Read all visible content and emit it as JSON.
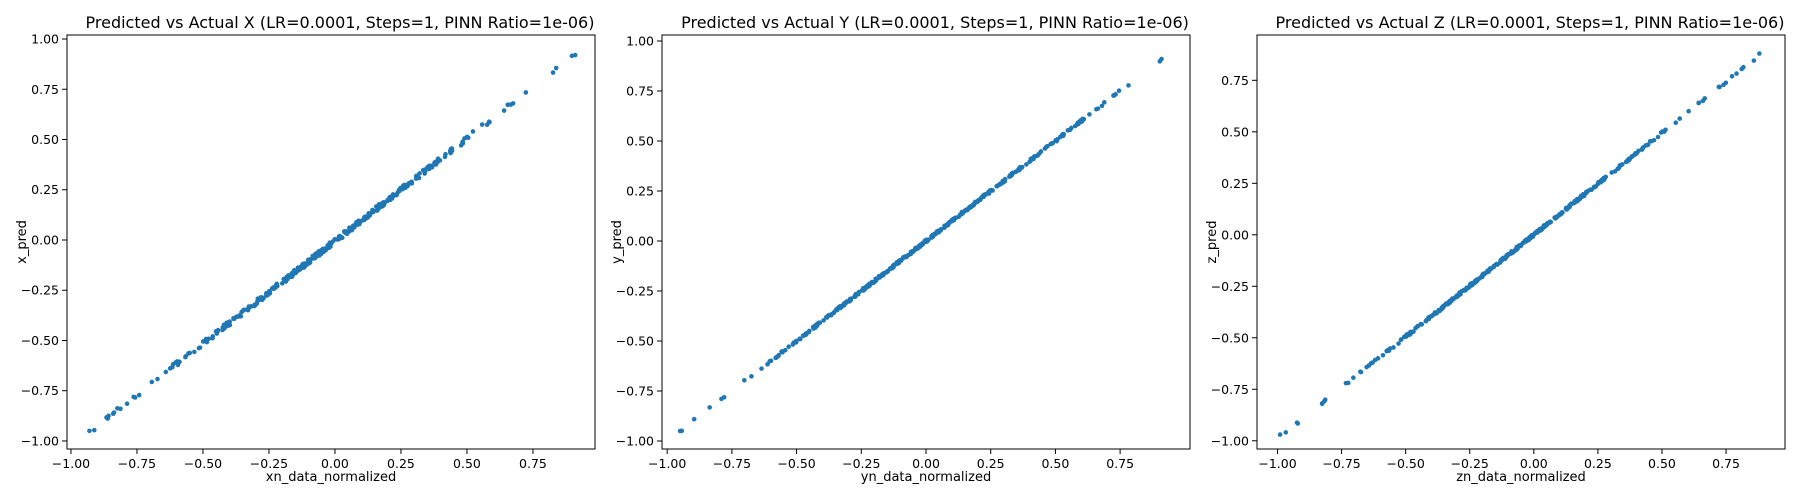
{
  "chart_data": [
    {
      "type": "scatter",
      "title": "Predicted vs Actual X (LR=0.0001, Steps=1, PINN Ratio=1e-06)",
      "xlabel": "xn_data_normalized",
      "ylabel": "x_pred",
      "xlim": [
        -1.015,
        0.985
      ],
      "ylim": [
        -1.04,
        1.02
      ],
      "xticks": [
        -1.0,
        -0.75,
        -0.5,
        -0.25,
        0.0,
        0.25,
        0.5,
        0.75
      ],
      "yticks": [
        -1.0,
        -0.75,
        -0.5,
        -0.25,
        0.0,
        0.25,
        0.5,
        0.75,
        1.0
      ],
      "tick_format": "0.00",
      "series": [
        {
          "color": "#1f77b4",
          "fit": {
            "slope": 1.02,
            "intercept": -0.005
          },
          "x_range": [
            -0.93,
            0.91
          ],
          "n_points": 320,
          "jitter": 0.012,
          "endpoints": [
            {
              "x": -0.93,
              "y": -0.95
            },
            {
              "x": 0.91,
              "y": 0.92
            }
          ]
        }
      ],
      "grid": false
    },
    {
      "type": "scatter",
      "title": "Predicted vs Actual Y (LR=0.0001, Steps=1, PINN Ratio=1e-06)",
      "xlabel": "yn_data_normalized",
      "ylabel": "y_pred",
      "xlim": [
        -1.02,
        1.02
      ],
      "ylim": [
        -1.04,
        1.03
      ],
      "xticks": [
        -1.0,
        -0.75,
        -0.5,
        -0.25,
        0.0,
        0.25,
        0.5,
        0.75
      ],
      "yticks": [
        -1.0,
        -0.75,
        -0.5,
        -0.25,
        0.0,
        0.25,
        0.5,
        0.75,
        1.0
      ],
      "tick_format": "0.00",
      "series": [
        {
          "color": "#1f77b4",
          "fit": {
            "slope": 1.0,
            "intercept": 0.0
          },
          "x_range": [
            -0.95,
            0.91
          ],
          "n_points": 320,
          "jitter": 0.006,
          "endpoints": [
            {
              "x": -0.95,
              "y": -0.95
            },
            {
              "x": 0.91,
              "y": 0.91
            }
          ]
        }
      ],
      "grid": false
    },
    {
      "type": "scatter",
      "title": "Predicted vs Actual Z (LR=0.0001, Steps=1, PINN Ratio=1e-06)",
      "xlabel": "zn_data_normalized",
      "ylabel": "z_pred",
      "xlim": [
        -1.08,
        0.98
      ],
      "ylim": [
        -1.04,
        0.97
      ],
      "xticks": [
        -1.0,
        -0.75,
        -0.5,
        -0.25,
        0.0,
        0.25,
        0.5,
        0.75
      ],
      "yticks": [
        -1.0,
        -0.75,
        -0.5,
        -0.25,
        0.0,
        0.25,
        0.5,
        0.75
      ],
      "tick_format": "0.00",
      "series": [
        {
          "color": "#1f77b4",
          "fit": {
            "slope": 0.99,
            "intercept": 0.0
          },
          "x_range": [
            -0.99,
            0.88
          ],
          "n_points": 320,
          "jitter": 0.006,
          "endpoints": [
            {
              "x": -0.99,
              "y": -0.97
            },
            {
              "x": 0.88,
              "y": 0.88
            }
          ]
        }
      ],
      "grid": false
    }
  ]
}
